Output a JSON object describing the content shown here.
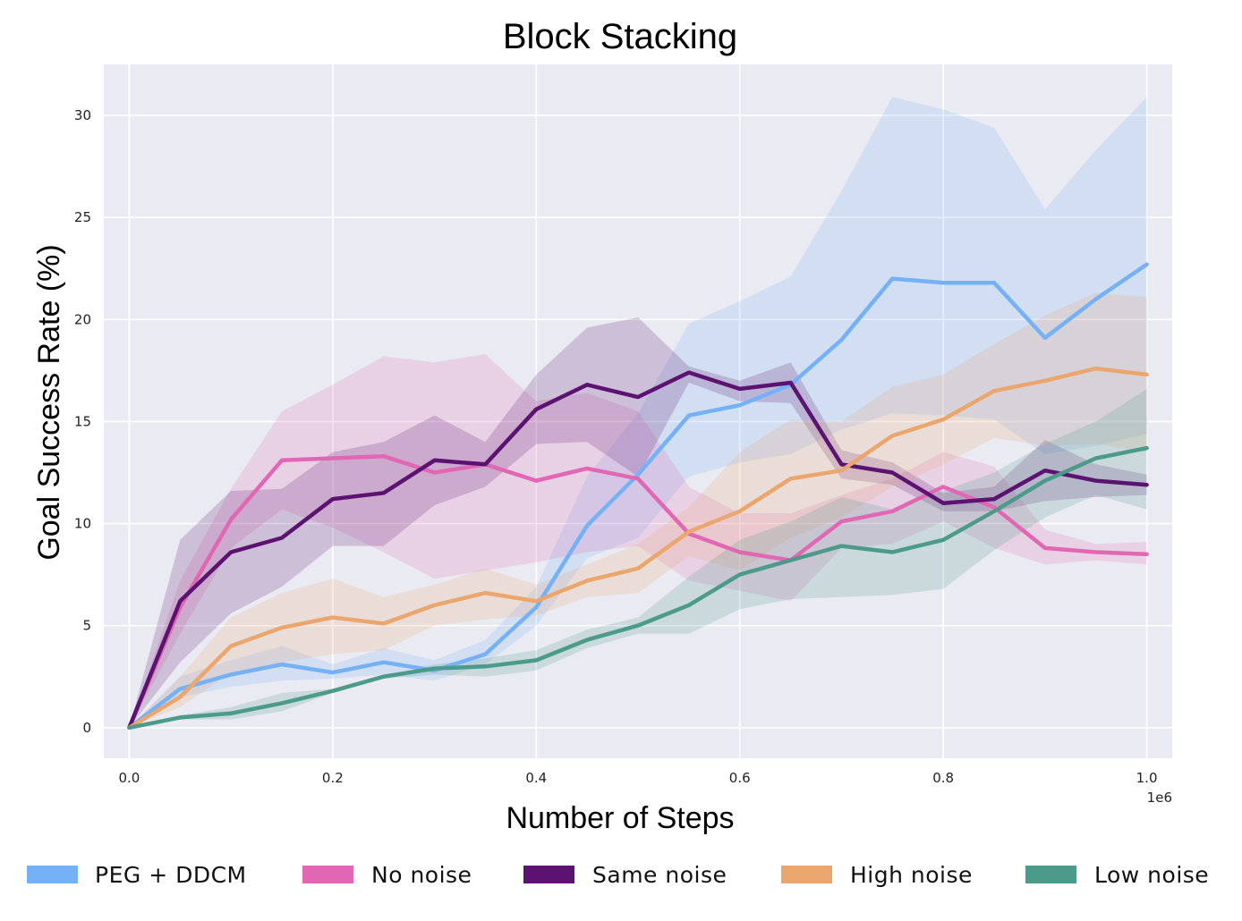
{
  "chart_data": {
    "type": "line",
    "title": "Block Stacking",
    "xlabel": "Number of Steps",
    "ylabel": "Goal Success Rate (%)",
    "x_offset_label": "1e6",
    "xlim": [
      -0.025,
      1.025
    ],
    "ylim": [
      -1.5,
      32.5
    ],
    "xticks": [
      0.0,
      0.2,
      0.4,
      0.6,
      0.8,
      1.0
    ],
    "xtick_labels": [
      "0.0",
      "0.2",
      "0.4",
      "0.6",
      "0.8",
      "1.0"
    ],
    "yticks": [
      0,
      5,
      10,
      15,
      20,
      25,
      30
    ],
    "ytick_labels": [
      "0",
      "5",
      "10",
      "15",
      "20",
      "25",
      "30"
    ],
    "grid": true,
    "legend_position": "bottom",
    "x": [
      0.0,
      0.05,
      0.1,
      0.15,
      0.2,
      0.25,
      0.3,
      0.35,
      0.4,
      0.45,
      0.5,
      0.55,
      0.6,
      0.65,
      0.7,
      0.75,
      0.8,
      0.85,
      0.9,
      0.95,
      1.0
    ],
    "series": [
      {
        "name": "PEG + DDCM",
        "color": "#74b1f7",
        "values": [
          0.0,
          1.9,
          2.6,
          3.1,
          2.7,
          3.2,
          2.8,
          3.6,
          5.9,
          9.9,
          12.4,
          15.3,
          15.8,
          16.8,
          19.0,
          22.0,
          21.8,
          21.8,
          19.1,
          21.0,
          22.7
        ],
        "upper": [
          0.0,
          2.5,
          3.3,
          4.0,
          3.1,
          3.9,
          3.3,
          4.3,
          6.9,
          12.3,
          15.4,
          19.8,
          20.9,
          22.1,
          26.3,
          30.9,
          30.3,
          29.4,
          25.4,
          28.3,
          30.9
        ],
        "lower": [
          0.0,
          1.5,
          2.0,
          2.3,
          2.4,
          2.6,
          2.3,
          3.1,
          5.0,
          8.3,
          9.3,
          12.3,
          13.0,
          13.4,
          14.6,
          15.4,
          15.3,
          15.1,
          13.4,
          13.8,
          14.4
        ]
      },
      {
        "name": "No noise",
        "color": "#e167b4",
        "values": [
          0.0,
          5.9,
          10.2,
          13.1,
          13.2,
          13.3,
          12.5,
          12.9,
          12.1,
          12.7,
          12.2,
          9.5,
          8.6,
          8.2,
          10.1,
          10.6,
          11.8,
          10.8,
          8.8,
          8.6,
          8.5
        ],
        "upper": [
          0.0,
          7.2,
          11.7,
          15.5,
          16.8,
          18.2,
          17.9,
          18.3,
          16.0,
          16.4,
          15.5,
          11.8,
          10.5,
          10.5,
          11.4,
          12.2,
          13.5,
          12.8,
          9.7,
          9.0,
          9.1
        ],
        "lower": [
          0.0,
          4.6,
          8.8,
          10.7,
          9.8,
          8.6,
          7.3,
          7.7,
          8.1,
          8.6,
          8.9,
          7.2,
          6.7,
          6.2,
          8.8,
          9.0,
          10.1,
          8.8,
          8.0,
          8.2,
          8.0
        ]
      },
      {
        "name": "Same noise",
        "color": "#5c1270",
        "values": [
          0.0,
          6.2,
          8.6,
          9.3,
          11.2,
          11.5,
          13.1,
          12.9,
          15.6,
          16.8,
          16.2,
          17.4,
          16.6,
          16.9,
          12.9,
          12.5,
          11.0,
          11.2,
          12.6,
          12.1,
          11.9
        ],
        "upper": [
          0.0,
          9.2,
          11.6,
          11.7,
          13.5,
          14.0,
          15.3,
          14.0,
          17.3,
          19.6,
          20.1,
          17.7,
          17.0,
          17.9,
          13.6,
          13.0,
          11.5,
          11.8,
          14.1,
          12.9,
          12.4
        ],
        "lower": [
          0.0,
          3.2,
          5.6,
          6.9,
          8.9,
          8.9,
          10.9,
          11.8,
          13.9,
          14.0,
          12.3,
          16.9,
          16.0,
          15.9,
          12.2,
          11.9,
          10.6,
          10.6,
          11.1,
          11.3,
          11.4
        ]
      },
      {
        "name": "High noise",
        "color": "#eaa66d",
        "values": [
          0.0,
          1.5,
          4.0,
          4.9,
          5.4,
          5.1,
          6.0,
          6.6,
          6.2,
          7.2,
          7.8,
          9.6,
          10.6,
          12.2,
          12.6,
          14.3,
          15.1,
          16.5,
          17.0,
          17.6,
          17.3
        ],
        "upper": [
          0.0,
          2.5,
          5.4,
          6.6,
          7.3,
          6.4,
          7.0,
          7.8,
          7.0,
          8.0,
          9.0,
          10.8,
          13.5,
          15.1,
          15.0,
          16.7,
          17.3,
          18.8,
          20.2,
          21.3,
          21.1
        ],
        "lower": [
          0.0,
          1.0,
          2.7,
          3.2,
          3.6,
          3.8,
          5.0,
          5.3,
          5.5,
          6.4,
          6.6,
          8.4,
          7.7,
          9.3,
          10.3,
          11.8,
          12.9,
          14.2,
          13.8,
          13.9,
          13.5
        ]
      },
      {
        "name": "Low noise",
        "color": "#4c9a89",
        "values": [
          0.0,
          0.5,
          0.7,
          1.2,
          1.8,
          2.5,
          2.9,
          3.0,
          3.3,
          4.3,
          5.0,
          6.0,
          7.5,
          8.2,
          8.9,
          8.6,
          9.2,
          10.6,
          12.1,
          13.2,
          13.7
        ],
        "upper": [
          0.0,
          0.6,
          1.0,
          1.7,
          1.9,
          2.5,
          3.1,
          3.4,
          3.8,
          4.8,
          5.4,
          7.4,
          9.2,
          10.1,
          11.3,
          10.7,
          11.6,
          12.5,
          13.9,
          15.0,
          16.6
        ],
        "lower": [
          0.0,
          0.4,
          0.4,
          0.8,
          1.7,
          2.4,
          2.6,
          2.5,
          2.8,
          3.9,
          4.6,
          4.6,
          5.8,
          6.3,
          6.4,
          6.5,
          6.8,
          8.7,
          10.3,
          11.4,
          10.7
        ]
      }
    ]
  }
}
